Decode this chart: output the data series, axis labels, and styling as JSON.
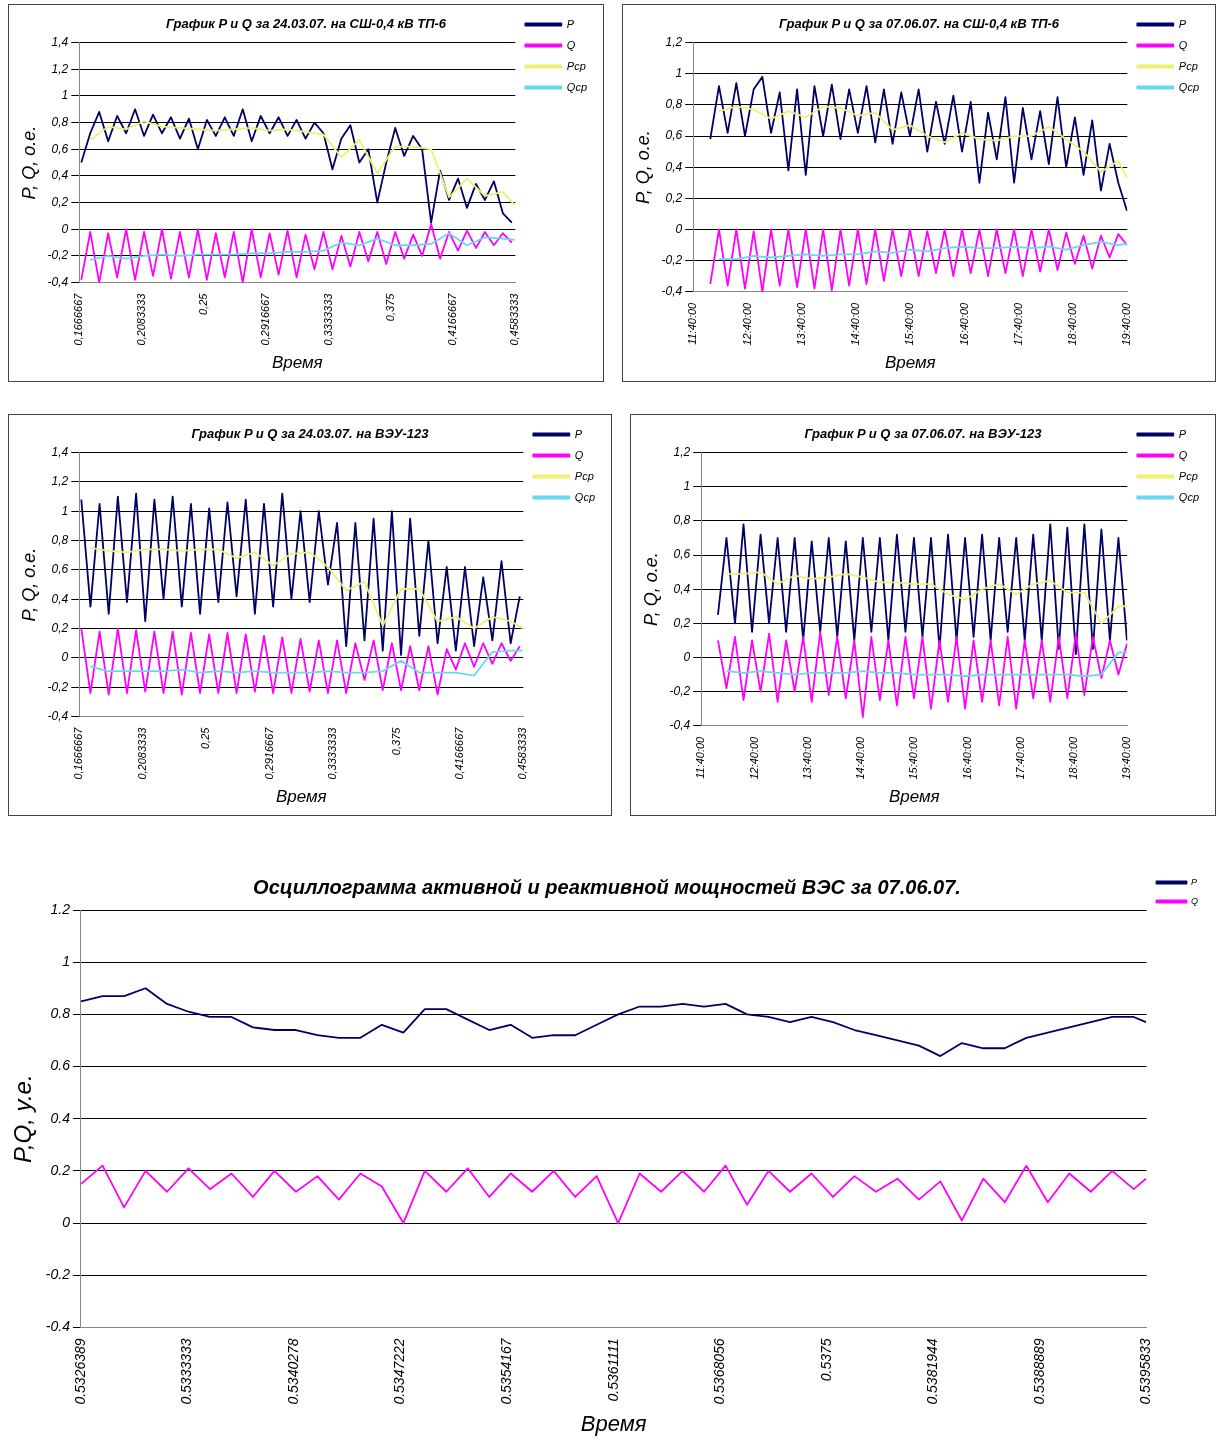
{
  "chart_data": [
    {
      "type": "line",
      "title": "График P и Q за 24.03.07. на СШ-0,4 кВ ТП-6",
      "xlabel": "Время",
      "ylabel": "P, Q, о.е.",
      "legend": "top right",
      "grid": "y",
      "xlim": [
        0.1666667,
        0.4583333
      ],
      "xticks": [
        {
          "value": 0.1666667,
          "label": "0,1666667"
        },
        {
          "value": 0.2083333,
          "label": "0,2083333"
        },
        {
          "value": 0.25,
          "label": "0,25"
        },
        {
          "value": 0.2916667,
          "label": "0,2916667"
        },
        {
          "value": 0.3333333,
          "label": "0,3333333"
        },
        {
          "value": 0.375,
          "label": "0,375"
        },
        {
          "value": 0.4166667,
          "label": "0,4166667"
        },
        {
          "value": 0.4583333,
          "label": "0,4583333"
        }
      ],
      "ylim": [
        -0.4,
        1.4
      ],
      "yticks": [
        {
          "value": -0.4,
          "label": "-0,4"
        },
        {
          "value": -0.2,
          "label": "-0,2"
        },
        0,
        {
          "value": 0.2,
          "label": "0,2"
        },
        {
          "value": 0.4,
          "label": "0,4"
        },
        {
          "value": 0.6,
          "label": "0,6"
        },
        {
          "value": 0.8,
          "label": "0,8"
        },
        1,
        {
          "value": 1.2,
          "label": "1,2"
        },
        {
          "value": 1.4,
          "label": "1,4"
        }
      ],
      "series": [
        {
          "name": "P",
          "color": "#000066",
          "x": [
            0.168,
            0.174,
            0.18,
            0.186,
            0.192,
            0.198,
            0.204,
            0.21,
            0.216,
            0.222,
            0.228,
            0.234,
            0.24,
            0.246,
            0.252,
            0.258,
            0.264,
            0.27,
            0.276,
            0.282,
            0.288,
            0.294,
            0.3,
            0.306,
            0.312,
            0.318,
            0.324,
            0.33,
            0.336,
            0.342,
            0.348,
            0.354,
            0.36,
            0.366,
            0.372,
            0.378,
            0.384,
            0.39,
            0.396,
            0.402,
            0.408,
            0.414,
            0.42,
            0.426,
            0.432,
            0.438,
            0.444,
            0.45,
            0.456
          ],
          "values": [
            0.5,
            0.72,
            0.88,
            0.66,
            0.85,
            0.72,
            0.9,
            0.7,
            0.86,
            0.72,
            0.84,
            0.68,
            0.83,
            0.6,
            0.82,
            0.7,
            0.84,
            0.7,
            0.9,
            0.66,
            0.85,
            0.72,
            0.84,
            0.7,
            0.82,
            0.68,
            0.8,
            0.72,
            0.45,
            0.68,
            0.78,
            0.5,
            0.6,
            0.2,
            0.5,
            0.76,
            0.55,
            0.7,
            0.6,
            0.05,
            0.44,
            0.22,
            0.38,
            0.16,
            0.34,
            0.22,
            0.36,
            0.12,
            0.05
          ]
        },
        {
          "name": "Q",
          "color": "#ff00ff",
          "x": [
            0.168,
            0.174,
            0.18,
            0.186,
            0.192,
            0.198,
            0.204,
            0.21,
            0.216,
            0.222,
            0.228,
            0.234,
            0.24,
            0.246,
            0.252,
            0.258,
            0.264,
            0.27,
            0.276,
            0.282,
            0.288,
            0.294,
            0.3,
            0.306,
            0.312,
            0.318,
            0.324,
            0.33,
            0.336,
            0.342,
            0.348,
            0.354,
            0.36,
            0.366,
            0.372,
            0.378,
            0.384,
            0.39,
            0.396,
            0.402,
            0.408,
            0.414,
            0.42,
            0.426,
            0.432,
            0.438,
            0.444,
            0.45,
            0.456
          ],
          "values": [
            -0.38,
            -0.02,
            -0.4,
            -0.03,
            -0.36,
            0,
            -0.38,
            -0.02,
            -0.35,
            0,
            -0.37,
            -0.02,
            -0.36,
            0,
            -0.38,
            -0.03,
            -0.36,
            -0.02,
            -0.4,
            0,
            -0.36,
            -0.03,
            -0.34,
            -0.01,
            -0.36,
            -0.04,
            -0.3,
            -0.02,
            -0.3,
            -0.05,
            -0.28,
            -0.02,
            -0.24,
            -0.02,
            -0.26,
            -0.02,
            -0.22,
            -0.04,
            -0.2,
            0.04,
            -0.22,
            -0.02,
            -0.16,
            -0.01,
            -0.14,
            -0.02,
            -0.12,
            -0.03,
            -0.1
          ]
        },
        {
          "name": "Pср",
          "color": "#f0f070",
          "x": [
            0.174,
            0.186,
            0.198,
            0.21,
            0.222,
            0.234,
            0.246,
            0.258,
            0.27,
            0.282,
            0.294,
            0.306,
            0.318,
            0.33,
            0.342,
            0.354,
            0.366,
            0.378,
            0.39,
            0.402,
            0.414,
            0.426,
            0.438,
            0.45,
            0.458
          ],
          "values": [
            0.67,
            0.77,
            0.75,
            0.81,
            0.77,
            0.76,
            0.75,
            0.74,
            0.75,
            0.76,
            0.74,
            0.75,
            0.73,
            0.71,
            0.54,
            0.67,
            0.42,
            0.62,
            0.62,
            0.6,
            0.24,
            0.38,
            0.25,
            0.28,
            0.18
          ]
        },
        {
          "name": "Qср",
          "color": "#66d8f0",
          "x": [
            0.174,
            0.186,
            0.198,
            0.21,
            0.222,
            0.234,
            0.246,
            0.258,
            0.27,
            0.282,
            0.294,
            0.306,
            0.318,
            0.33,
            0.342,
            0.354,
            0.366,
            0.378,
            0.39,
            0.402,
            0.414,
            0.426,
            0.438,
            0.45,
            0.458
          ],
          "values": [
            -0.23,
            -0.2,
            -0.22,
            -0.2,
            -0.19,
            -0.2,
            -0.19,
            -0.19,
            -0.19,
            -0.18,
            -0.18,
            -0.17,
            -0.17,
            -0.16,
            -0.1,
            -0.12,
            -0.07,
            -0.12,
            -0.12,
            -0.11,
            -0.03,
            -0.12,
            -0.06,
            -0.07,
            -0.08
          ]
        }
      ]
    },
    {
      "type": "line",
      "title": "График P и Q за 07.06.07. на СШ-0,4 кВ ТП-6",
      "xlabel": "Время",
      "ylabel": "P, Q, о.е.",
      "legend": "top right",
      "grid": "y",
      "xlim": [
        11.666667,
        19.666667
      ],
      "xticks": [
        {
          "value": 11.666667,
          "label": "11:40:00"
        },
        {
          "value": 12.666667,
          "label": "12:40:00"
        },
        {
          "value": 13.666667,
          "label": "13:40:00"
        },
        {
          "value": 14.666667,
          "label": "14:40:00"
        },
        {
          "value": 15.666667,
          "label": "15:40:00"
        },
        {
          "value": 16.666667,
          "label": "16:40:00"
        },
        {
          "value": 17.666667,
          "label": "17:40:00"
        },
        {
          "value": 18.666667,
          "label": "18:40:00"
        },
        {
          "value": 19.666667,
          "label": "19:40:00"
        }
      ],
      "ylim": [
        -0.4,
        1.2
      ],
      "yticks": [
        {
          "value": -0.4,
          "label": "-0,4"
        },
        {
          "value": -0.2,
          "label": "-0,2"
        },
        0,
        {
          "value": 0.2,
          "label": "0,2"
        },
        {
          "value": 0.4,
          "label": "0,4"
        },
        {
          "value": 0.6,
          "label": "0,6"
        },
        {
          "value": 0.8,
          "label": "0,8"
        },
        1,
        {
          "value": 1.2,
          "label": "1,2"
        }
      ],
      "series": [
        {
          "name": "P",
          "color": "#000066",
          "x": [
            11.98,
            12.14,
            12.3,
            12.46,
            12.62,
            12.78,
            12.94,
            13.1,
            13.26,
            13.42,
            13.58,
            13.74,
            13.9,
            14.06,
            14.22,
            14.38,
            14.54,
            14.7,
            14.86,
            15.02,
            15.18,
            15.34,
            15.5,
            15.66,
            15.82,
            15.98,
            16.14,
            16.3,
            16.46,
            16.62,
            16.78,
            16.94,
            17.1,
            17.26,
            17.42,
            17.58,
            17.74,
            17.9,
            18.06,
            18.22,
            18.38,
            18.54,
            18.7,
            18.86,
            19.02,
            19.18,
            19.34,
            19.5,
            19.66
          ],
          "values": [
            0.58,
            0.92,
            0.62,
            0.94,
            0.6,
            0.9,
            0.98,
            0.62,
            0.88,
            0.38,
            0.9,
            0.35,
            0.92,
            0.6,
            0.93,
            0.58,
            0.9,
            0.62,
            0.92,
            0.56,
            0.9,
            0.55,
            0.88,
            0.6,
            0.9,
            0.5,
            0.82,
            0.55,
            0.86,
            0.5,
            0.82,
            0.3,
            0.75,
            0.45,
            0.85,
            0.3,
            0.78,
            0.45,
            0.76,
            0.42,
            0.85,
            0.4,
            0.72,
            0.35,
            0.7,
            0.25,
            0.55,
            0.3,
            0.12
          ]
        },
        {
          "name": "Q",
          "color": "#ff00ff",
          "x": [
            11.98,
            12.14,
            12.3,
            12.46,
            12.62,
            12.78,
            12.94,
            13.1,
            13.26,
            13.42,
            13.58,
            13.74,
            13.9,
            14.06,
            14.22,
            14.38,
            14.54,
            14.7,
            14.86,
            15.02,
            15.18,
            15.34,
            15.5,
            15.66,
            15.82,
            15.98,
            16.14,
            16.3,
            16.46,
            16.62,
            16.78,
            16.94,
            17.1,
            17.26,
            17.42,
            17.58,
            17.74,
            17.9,
            18.06,
            18.22,
            18.38,
            18.54,
            18.7,
            18.86,
            19.02,
            19.18,
            19.34,
            19.5,
            19.66
          ],
          "values": [
            -0.35,
            0,
            -0.36,
            0,
            -0.38,
            -0.01,
            -0.4,
            0,
            -0.36,
            0,
            -0.37,
            0,
            -0.38,
            0,
            -0.39,
            0,
            -0.36,
            0,
            -0.35,
            0,
            -0.33,
            0,
            -0.3,
            0,
            -0.3,
            -0.01,
            -0.28,
            0,
            -0.3,
            0,
            -0.28,
            0,
            -0.3,
            0,
            -0.28,
            0,
            -0.3,
            0,
            -0.27,
            0,
            -0.26,
            -0.02,
            -0.22,
            -0.04,
            -0.25,
            -0.04,
            -0.18,
            -0.03,
            -0.1
          ]
        },
        {
          "name": "Pср",
          "color": "#f0f070",
          "x": [
            12.14,
            12.46,
            12.78,
            13.1,
            13.42,
            13.74,
            14.06,
            14.38,
            14.7,
            15.02,
            15.34,
            15.66,
            15.98,
            16.3,
            16.62,
            16.94,
            17.26,
            17.58,
            17.9,
            18.22,
            18.54,
            18.86,
            19.18,
            19.5,
            19.66
          ],
          "values": [
            0.76,
            0.79,
            0.77,
            0.71,
            0.76,
            0.72,
            0.79,
            0.78,
            0.73,
            0.75,
            0.64,
            0.67,
            0.6,
            0.56,
            0.62,
            0.58,
            0.57,
            0.6,
            0.6,
            0.66,
            0.58,
            0.5,
            0.37,
            0.44,
            0.33
          ]
        },
        {
          "name": "Qср",
          "color": "#66d8f0",
          "x": [
            12.14,
            12.46,
            12.78,
            13.1,
            13.42,
            13.74,
            14.06,
            14.38,
            14.7,
            15.02,
            15.34,
            15.66,
            15.98,
            16.3,
            16.62,
            16.94,
            17.26,
            17.58,
            17.9,
            18.22,
            18.54,
            18.86,
            19.18,
            19.5,
            19.66
          ],
          "values": [
            -0.19,
            -0.19,
            -0.17,
            -0.18,
            -0.17,
            -0.16,
            -0.17,
            -0.16,
            -0.16,
            -0.14,
            -0.15,
            -0.13,
            -0.14,
            -0.12,
            -0.11,
            -0.12,
            -0.12,
            -0.11,
            -0.12,
            -0.11,
            -0.13,
            -0.1,
            -0.08,
            -0.1,
            -0.09
          ]
        }
      ]
    },
    {
      "type": "line",
      "title": "График P и Q за 24.03.07. на ВЭУ-123",
      "xlabel": "Время",
      "ylabel": "P, Q, о.е.",
      "legend": "top right",
      "grid": "y",
      "xlim": [
        0.1666667,
        0.4583333
      ],
      "xticks": [
        {
          "value": 0.1666667,
          "label": "0,1666667"
        },
        {
          "value": 0.2083333,
          "label": "0,2083333"
        },
        {
          "value": 0.25,
          "label": "0,25"
        },
        {
          "value": 0.2916667,
          "label": "0,2916667"
        },
        {
          "value": 0.3333333,
          "label": "0,3333333"
        },
        {
          "value": 0.375,
          "label": "0,375"
        },
        {
          "value": 0.4166667,
          "label": "0,4166667"
        },
        {
          "value": 0.4583333,
          "label": "0,4583333"
        }
      ],
      "ylim": [
        -0.4,
        1.4
      ],
      "yticks": [
        {
          "value": -0.4,
          "label": "-0,4"
        },
        {
          "value": -0.2,
          "label": "-0,2"
        },
        0,
        {
          "value": 0.2,
          "label": "0,2"
        },
        {
          "value": 0.4,
          "label": "0,4"
        },
        {
          "value": 0.6,
          "label": "0,6"
        },
        {
          "value": 0.8,
          "label": "0,8"
        },
        1,
        {
          "value": 1.2,
          "label": "1,2"
        },
        {
          "value": 1.4,
          "label": "1,4"
        }
      ],
      "series": [
        {
          "name": "P",
          "color": "#000066",
          "x": [
            0.168,
            0.174,
            0.18,
            0.186,
            0.192,
            0.198,
            0.204,
            0.21,
            0.216,
            0.222,
            0.228,
            0.234,
            0.24,
            0.246,
            0.252,
            0.258,
            0.264,
            0.27,
            0.276,
            0.282,
            0.288,
            0.294,
            0.3,
            0.306,
            0.312,
            0.318,
            0.324,
            0.33,
            0.336,
            0.342,
            0.348,
            0.354,
            0.36,
            0.366,
            0.372,
            0.378,
            0.384,
            0.39,
            0.396,
            0.402,
            0.408,
            0.414,
            0.42,
            0.426,
            0.432,
            0.438,
            0.444,
            0.45,
            0.456
          ],
          "values": [
            1.08,
            0.35,
            1.05,
            0.3,
            1.1,
            0.38,
            1.12,
            0.25,
            1.08,
            0.4,
            1.1,
            0.35,
            1.05,
            0.3,
            1.02,
            0.38,
            1.06,
            0.42,
            1.08,
            0.3,
            1.05,
            0.35,
            1.12,
            0.4,
            1,
            0.38,
            1,
            0.5,
            0.92,
            0.08,
            0.92,
            0.12,
            0.95,
            0.05,
            1,
            0.02,
            0.95,
            0.15,
            0.8,
            0.1,
            0.62,
            0.05,
            0.62,
            0.08,
            0.55,
            0.12,
            0.66,
            0.1,
            0.42
          ]
        },
        {
          "name": "Q",
          "color": "#ff00ff",
          "x": [
            0.168,
            0.174,
            0.18,
            0.186,
            0.192,
            0.198,
            0.204,
            0.21,
            0.216,
            0.222,
            0.228,
            0.234,
            0.24,
            0.246,
            0.252,
            0.258,
            0.264,
            0.27,
            0.276,
            0.282,
            0.288,
            0.294,
            0.3,
            0.306,
            0.312,
            0.318,
            0.324,
            0.33,
            0.336,
            0.342,
            0.348,
            0.354,
            0.36,
            0.366,
            0.372,
            0.378,
            0.384,
            0.39,
            0.396,
            0.402,
            0.408,
            0.414,
            0.42,
            0.426,
            0.432,
            0.438,
            0.444,
            0.45,
            0.456
          ],
          "values": [
            0.2,
            -0.24,
            0.18,
            -0.25,
            0.2,
            -0.24,
            0.19,
            -0.23,
            0.18,
            -0.24,
            0.18,
            -0.25,
            0.17,
            -0.24,
            0.16,
            -0.24,
            0.17,
            -0.24,
            0.16,
            -0.23,
            0.15,
            -0.24,
            0.14,
            -0.24,
            0.13,
            -0.23,
            0.12,
            -0.24,
            0.12,
            -0.24,
            0.1,
            -0.15,
            0.12,
            -0.22,
            0.1,
            -0.22,
            0.08,
            -0.22,
            0.08,
            -0.25,
            0.06,
            -0.08,
            0.1,
            -0.06,
            0.1,
            -0.04,
            0.1,
            -0.02,
            0.08
          ]
        },
        {
          "name": "Pср",
          "color": "#f0f070",
          "x": [
            0.174,
            0.186,
            0.198,
            0.21,
            0.222,
            0.234,
            0.246,
            0.258,
            0.27,
            0.282,
            0.294,
            0.306,
            0.318,
            0.33,
            0.342,
            0.354,
            0.366,
            0.378,
            0.39,
            0.402,
            0.414,
            0.426,
            0.438,
            0.45,
            0.458
          ],
          "values": [
            0.75,
            0.73,
            0.72,
            0.74,
            0.74,
            0.73,
            0.74,
            0.74,
            0.68,
            0.72,
            0.63,
            0.71,
            0.72,
            0.62,
            0.46,
            0.52,
            0.22,
            0.47,
            0.47,
            0.25,
            0.28,
            0.2,
            0.28,
            0.25,
            0.2
          ]
        },
        {
          "name": "Qср",
          "color": "#66d8f0",
          "x": [
            0.174,
            0.186,
            0.198,
            0.21,
            0.222,
            0.234,
            0.246,
            0.258,
            0.27,
            0.282,
            0.294,
            0.306,
            0.318,
            0.33,
            0.342,
            0.354,
            0.366,
            0.378,
            0.39,
            0.402,
            0.414,
            0.426,
            0.438,
            0.45,
            0.458
          ],
          "values": [
            -0.06,
            -0.09,
            -0.09,
            -0.09,
            -0.09,
            -0.08,
            -0.1,
            -0.09,
            -0.1,
            -0.09,
            -0.1,
            -0.1,
            -0.1,
            -0.09,
            -0.1,
            -0.1,
            -0.09,
            -0.02,
            -0.1,
            -0.1,
            -0.1,
            -0.12,
            0.04,
            0.05,
            0.05
          ]
        }
      ]
    },
    {
      "type": "line",
      "title": "График P и Q за 07.06.07. на ВЭУ-123",
      "xlabel": "Время",
      "ylabel": "P, Q, о.е.",
      "legend": "top right",
      "grid": "y",
      "xlim": [
        11.666667,
        19.666667
      ],
      "xticks": [
        {
          "value": 11.666667,
          "label": "11:40:00"
        },
        {
          "value": 12.666667,
          "label": "12:40:00"
        },
        {
          "value": 13.666667,
          "label": "13:40:00"
        },
        {
          "value": 14.666667,
          "label": "14:40:00"
        },
        {
          "value": 15.666667,
          "label": "15:40:00"
        },
        {
          "value": 16.666667,
          "label": "16:40:00"
        },
        {
          "value": 17.666667,
          "label": "17:40:00"
        },
        {
          "value": 18.666667,
          "label": "18:40:00"
        },
        {
          "value": 19.666667,
          "label": "19:40:00"
        }
      ],
      "ylim": [
        -0.4,
        1.2
      ],
      "yticks": [
        {
          "value": -0.4,
          "label": "-0,4"
        },
        {
          "value": -0.2,
          "label": "-0,2"
        },
        0,
        {
          "value": 0.2,
          "label": "0,2"
        },
        {
          "value": 0.4,
          "label": "0,4"
        },
        {
          "value": 0.6,
          "label": "0,6"
        },
        {
          "value": 0.8,
          "label": "0,8"
        },
        1,
        {
          "value": 1.2,
          "label": "1,2"
        }
      ],
      "series": [
        {
          "name": "P",
          "color": "#000066",
          "x": [
            11.98,
            12.14,
            12.3,
            12.46,
            12.62,
            12.78,
            12.94,
            13.1,
            13.26,
            13.42,
            13.58,
            13.74,
            13.9,
            14.06,
            14.22,
            14.38,
            14.54,
            14.7,
            14.86,
            15.02,
            15.18,
            15.34,
            15.5,
            15.66,
            15.82,
            15.98,
            16.14,
            16.3,
            16.46,
            16.62,
            16.78,
            16.94,
            17.1,
            17.26,
            17.42,
            17.58,
            17.74,
            17.9,
            18.06,
            18.22,
            18.38,
            18.54,
            18.7,
            18.86,
            19.02,
            19.18,
            19.34,
            19.5,
            19.66
          ],
          "values": [
            0.25,
            0.7,
            0.2,
            0.78,
            0.15,
            0.72,
            0.2,
            0.7,
            0.15,
            0.7,
            0.1,
            0.68,
            0.15,
            0.7,
            0.12,
            0.68,
            0.1,
            0.7,
            0.15,
            0.7,
            0.1,
            0.72,
            0.15,
            0.7,
            0.12,
            0.7,
            0.05,
            0.72,
            0.1,
            0.7,
            0.12,
            0.72,
            0.1,
            0.7,
            0.15,
            0.7,
            0.1,
            0.72,
            0.1,
            0.78,
            0.05,
            0.76,
            0.02,
            0.78,
            0.05,
            0.75,
            0.1,
            0.7,
            0.1
          ]
        },
        {
          "name": "Q",
          "color": "#ff00ff",
          "x": [
            11.98,
            12.14,
            12.3,
            12.46,
            12.62,
            12.78,
            12.94,
            13.1,
            13.26,
            13.42,
            13.58,
            13.74,
            13.9,
            14.06,
            14.22,
            14.38,
            14.54,
            14.7,
            14.86,
            15.02,
            15.18,
            15.34,
            15.5,
            15.66,
            15.82,
            15.98,
            16.14,
            16.3,
            16.46,
            16.62,
            16.78,
            16.94,
            17.1,
            17.26,
            17.42,
            17.58,
            17.74,
            17.9,
            18.06,
            18.22,
            18.38,
            18.54,
            18.7,
            18.86,
            19.02,
            19.18,
            19.34,
            19.5,
            19.66
          ],
          "values": [
            0.1,
            -0.18,
            0.12,
            -0.25,
            0.1,
            -0.2,
            0.14,
            -0.26,
            0.1,
            -0.2,
            0.12,
            -0.26,
            0.15,
            -0.22,
            0.12,
            -0.24,
            0.1,
            -0.35,
            0.12,
            -0.25,
            0.1,
            -0.28,
            0.12,
            -0.24,
            0.12,
            -0.3,
            0.1,
            -0.26,
            0.12,
            -0.3,
            0.1,
            -0.26,
            0.1,
            -0.28,
            0.12,
            -0.3,
            0.1,
            -0.24,
            0.1,
            -0.26,
            0.12,
            -0.24,
            0.14,
            -0.22,
            0.12,
            -0.12,
            0.1,
            -0.1,
            0.08
          ]
        },
        {
          "name": "Pср",
          "color": "#f0f070",
          "x": [
            12.14,
            12.46,
            12.78,
            13.1,
            13.42,
            13.74,
            14.06,
            14.38,
            14.7,
            15.02,
            15.34,
            15.66,
            15.98,
            16.3,
            16.62,
            16.94,
            17.26,
            17.58,
            17.9,
            18.22,
            18.54,
            18.86,
            19.18,
            19.5,
            19.66
          ],
          "values": [
            0.49,
            0.49,
            0.5,
            0.43,
            0.48,
            0.46,
            0.47,
            0.49,
            0.47,
            0.44,
            0.44,
            0.43,
            0.43,
            0.37,
            0.34,
            0.4,
            0.43,
            0.37,
            0.43,
            0.45,
            0.38,
            0.38,
            0.2,
            0.3,
            0.3
          ]
        },
        {
          "name": "Qср",
          "color": "#66d8f0",
          "x": [
            12.14,
            12.46,
            12.78,
            13.1,
            13.42,
            13.74,
            14.06,
            14.38,
            14.7,
            15.02,
            15.34,
            15.66,
            15.98,
            16.3,
            16.62,
            16.94,
            17.26,
            17.58,
            17.9,
            18.22,
            18.54,
            18.86,
            19.18,
            19.5,
            19.66
          ],
          "values": [
            -0.08,
            -0.09,
            -0.08,
            -0.09,
            -0.1,
            -0.09,
            -0.09,
            -0.09,
            -0.08,
            -0.09,
            -0.09,
            -0.1,
            -0.1,
            -0.1,
            -0.11,
            -0.1,
            -0.1,
            -0.1,
            -0.1,
            -0.1,
            -0.1,
            -0.11,
            -0.1,
            0.03,
            0.03
          ]
        }
      ]
    },
    {
      "type": "line",
      "title": "Осциллограмма активной и реактивной мощностей ВЭС за 07.06.07.",
      "xlabel": "Время",
      "ylabel": "P,Q, у.е.",
      "legend": "top right",
      "grid": "y",
      "xlim": [
        0.5326389,
        0.5395833
      ],
      "xticks": [
        0.5326389,
        0.5333333,
        0.5340278,
        0.5347222,
        0.5354167,
        0.5361111,
        0.5368056,
        0.5375,
        0.5381944,
        0.5388889,
        0.5395833
      ],
      "ylim": [
        -0.4,
        1.2
      ],
      "yticks": [
        -0.4,
        -0.2,
        0,
        0.2,
        0.4,
        0.6,
        0.8,
        1,
        1.2
      ],
      "series": [
        {
          "name": "P",
          "color": "#000066",
          "x": [
            0.53264,
            0.53278,
            0.53292,
            0.53306,
            0.5332,
            0.53334,
            0.53348,
            0.53362,
            0.53376,
            0.5339,
            0.53404,
            0.53418,
            0.53432,
            0.53446,
            0.5346,
            0.53474,
            0.53488,
            0.53502,
            0.53516,
            0.5353,
            0.53544,
            0.53558,
            0.53572,
            0.53586,
            0.536,
            0.53614,
            0.53628,
            0.53642,
            0.53656,
            0.5367,
            0.53684,
            0.53698,
            0.53712,
            0.53726,
            0.5374,
            0.53754,
            0.53768,
            0.53782,
            0.53796,
            0.5381,
            0.53824,
            0.53838,
            0.53852,
            0.53866,
            0.5388,
            0.53894,
            0.53908,
            0.53922,
            0.53936,
            0.5395,
            0.53958
          ],
          "values": [
            0.85,
            0.87,
            0.87,
            0.9,
            0.84,
            0.81,
            0.79,
            0.79,
            0.75,
            0.74,
            0.74,
            0.72,
            0.71,
            0.71,
            0.76,
            0.73,
            0.82,
            0.82,
            0.78,
            0.74,
            0.76,
            0.71,
            0.72,
            0.72,
            0.76,
            0.8,
            0.83,
            0.83,
            0.84,
            0.83,
            0.84,
            0.8,
            0.79,
            0.77,
            0.79,
            0.77,
            0.74,
            0.72,
            0.7,
            0.68,
            0.64,
            0.69,
            0.67,
            0.67,
            0.71,
            0.73,
            0.75,
            0.77,
            0.79,
            0.79,
            0.77
          ]
        },
        {
          "name": "Q",
          "color": "#ff00ff",
          "x": [
            0.53264,
            0.53278,
            0.53292,
            0.53306,
            0.5332,
            0.53334,
            0.53348,
            0.53362,
            0.53376,
            0.5339,
            0.53404,
            0.53418,
            0.53432,
            0.53446,
            0.5346,
            0.53474,
            0.53488,
            0.53502,
            0.53516,
            0.5353,
            0.53544,
            0.53558,
            0.53572,
            0.53586,
            0.536,
            0.53614,
            0.53628,
            0.53642,
            0.53656,
            0.5367,
            0.53684,
            0.53698,
            0.53712,
            0.53726,
            0.5374,
            0.53754,
            0.53768,
            0.53782,
            0.53796,
            0.5381,
            0.53824,
            0.53838,
            0.53852,
            0.53866,
            0.5388,
            0.53894,
            0.53908,
            0.53922,
            0.53936,
            0.5395,
            0.53958
          ],
          "values": [
            0.15,
            0.22,
            0.06,
            0.2,
            0.12,
            0.21,
            0.13,
            0.19,
            0.1,
            0.2,
            0.12,
            0.18,
            0.09,
            0.19,
            0.14,
            0,
            0.2,
            0.12,
            0.21,
            0.1,
            0.19,
            0.12,
            0.2,
            0.1,
            0.18,
            0,
            0.19,
            0.12,
            0.2,
            0.12,
            0.22,
            0.07,
            0.2,
            0.12,
            0.19,
            0.1,
            0.18,
            0.12,
            0.17,
            0.09,
            0.16,
            0.01,
            0.17,
            0.08,
            0.22,
            0.08,
            0.19,
            0.12,
            0.2,
            0.13,
            0.17
          ]
        }
      ]
    }
  ]
}
